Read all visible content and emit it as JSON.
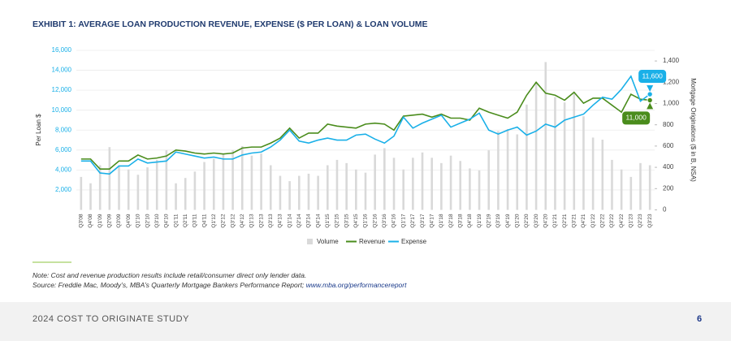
{
  "chart_data": {
    "type": "combo",
    "title": "EXHIBIT 1: AVERAGE LOAN PRODUCTION REVENUE, EXPENSE ($ PER LOAN) & LOAN VOLUME",
    "ylabel": "Per Loan $",
    "y2label": "Mortgage Originations ($ in B, NSA)",
    "categories": [
      "Q3'08",
      "Q4'08",
      "Q1'09",
      "Q2'09",
      "Q3'09",
      "Q4'09",
      "Q1'10",
      "Q2'10",
      "Q3'10",
      "Q4'10",
      "Q1'11",
      "Q2'11",
      "Q3'11",
      "Q4'11",
      "Q1'12",
      "Q2'12",
      "Q3'12",
      "Q4'12",
      "Q1'13",
      "Q2'13",
      "Q3'13",
      "Q4'13",
      "Q1'14",
      "Q2'14",
      "Q3'14",
      "Q4'14",
      "Q1'15",
      "Q2'15",
      "Q3'15",
      "Q4'15",
      "Q1'16",
      "Q2'16",
      "Q3'16",
      "Q4'16",
      "Q1'17",
      "Q2'17",
      "Q3'17",
      "Q4'17",
      "Q1'18",
      "Q2'18",
      "Q3'18",
      "Q4'18",
      "Q1'19",
      "Q2'19",
      "Q3'19",
      "Q4'19",
      "Q1'20",
      "Q2'20",
      "Q3'20",
      "Q4'20",
      "Q1'21",
      "Q2'21",
      "Q3'21",
      "Q4'21",
      "Q1'22",
      "Q2'22",
      "Q3'22",
      "Q4'22",
      "Q1'23",
      "Q2'23",
      "Q3'23"
    ],
    "series": [
      {
        "name": "Volume",
        "type": "bar",
        "axis": "y2",
        "color": "#d9d9d9",
        "values": [
          310,
          250,
          420,
          590,
          420,
          380,
          330,
          400,
          470,
          560,
          250,
          300,
          360,
          450,
          480,
          530,
          560,
          600,
          510,
          530,
          420,
          320,
          270,
          320,
          340,
          320,
          420,
          470,
          440,
          380,
          350,
          520,
          580,
          490,
          380,
          490,
          540,
          490,
          440,
          510,
          460,
          390,
          370,
          560,
          740,
          760,
          710,
          990,
          1200,
          1390,
          1060,
          1010,
          1100,
          880,
          680,
          660,
          470,
          380,
          310,
          440,
          420
        ]
      },
      {
        "name": "Revenue",
        "type": "line",
        "color": "#4a8c1c",
        "values": [
          5100,
          5100,
          4100,
          4100,
          4900,
          4900,
          5500,
          5100,
          5200,
          5400,
          6000,
          5900,
          5700,
          5600,
          5700,
          5600,
          5700,
          6200,
          6300,
          6300,
          6700,
          7200,
          8200,
          7200,
          7700,
          7700,
          8600,
          8400,
          8300,
          8200,
          8600,
          8700,
          8600,
          8000,
          9400,
          9500,
          9600,
          9300,
          9600,
          9200,
          9200,
          9000,
          10200,
          9800,
          9500,
          9200,
          9800,
          11500,
          12800,
          11700,
          11500,
          11000,
          11800,
          10700,
          11200,
          11200,
          10500,
          9800,
          11600,
          11100,
          11000
        ],
        "value_labels": [
          null,
          null,
          null,
          null,
          null,
          null,
          null,
          null,
          null,
          null,
          null,
          null,
          null,
          null,
          null,
          null,
          null,
          null,
          null,
          null,
          null,
          null,
          null,
          null,
          null,
          null,
          null,
          null,
          null,
          null,
          null,
          null,
          null,
          null,
          null,
          null,
          null,
          null,
          null,
          null,
          null,
          null,
          null,
          null,
          null,
          null,
          null,
          null,
          null,
          null,
          null,
          null,
          null,
          null,
          null,
          null,
          null,
          null,
          null,
          null,
          "11,000"
        ]
      },
      {
        "name": "Expense",
        "type": "line",
        "color": "#1ab0e8",
        "values": [
          4900,
          4900,
          3700,
          3600,
          4400,
          4400,
          5100,
          4700,
          4800,
          4900,
          5800,
          5600,
          5400,
          5200,
          5300,
          5100,
          5100,
          5500,
          5700,
          5800,
          6300,
          7000,
          8000,
          6900,
          6700,
          7000,
          7200,
          7000,
          7000,
          7500,
          7600,
          7100,
          6700,
          7400,
          9300,
          8200,
          8700,
          9100,
          9500,
          8300,
          8700,
          9100,
          9700,
          8000,
          7600,
          8000,
          8300,
          7500,
          7900,
          8600,
          8300,
          9000,
          9300,
          9600,
          10500,
          11300,
          11100,
          12100,
          13400,
          10900,
          11600
        ],
        "value_labels": [
          null,
          null,
          null,
          null,
          null,
          null,
          null,
          null,
          null,
          null,
          null,
          null,
          null,
          null,
          null,
          null,
          null,
          null,
          null,
          null,
          null,
          null,
          null,
          null,
          null,
          null,
          null,
          null,
          null,
          null,
          null,
          null,
          null,
          null,
          null,
          null,
          null,
          null,
          null,
          null,
          null,
          null,
          null,
          null,
          null,
          null,
          null,
          null,
          null,
          null,
          null,
          null,
          null,
          null,
          null,
          null,
          null,
          null,
          null,
          null,
          "11,600"
        ]
      }
    ],
    "ylim": [
      0,
      16000
    ],
    "yticks": [
      {
        "value": 2000,
        "label": "2,000"
      },
      {
        "value": 4000,
        "label": "4,000"
      },
      {
        "value": 6000,
        "label": "6,000"
      },
      {
        "value": 8000,
        "label": "8,000"
      },
      {
        "value": 10000,
        "label": "10,000"
      },
      {
        "value": 12000,
        "label": "12,000"
      },
      {
        "value": 14000,
        "label": "14,000"
      },
      {
        "value": 16000,
        "label": "16,000"
      }
    ],
    "y2lim": [
      0,
      1500
    ],
    "y2ticks": [
      0,
      200,
      400,
      600,
      800,
      {
        "value": 1000,
        "label": "1,000"
      },
      {
        "value": 1200,
        "label": "1,200"
      },
      {
        "value": 1400,
        "label": "1,400"
      }
    ],
    "grid": true,
    "legend": "bottom"
  },
  "note": "Note: Cost and revenue production results include retail/consumer direct only lender data.",
  "source": {
    "text": "Source: Freddie Mac, Moody’s, MBA’s Quarterly Mortgage Bankers Performance Report; ",
    "link": "www.mba.org/performancereport"
  },
  "footer": {
    "title": "2024 COST TO ORIGINATE STUDY",
    "page": "6"
  }
}
